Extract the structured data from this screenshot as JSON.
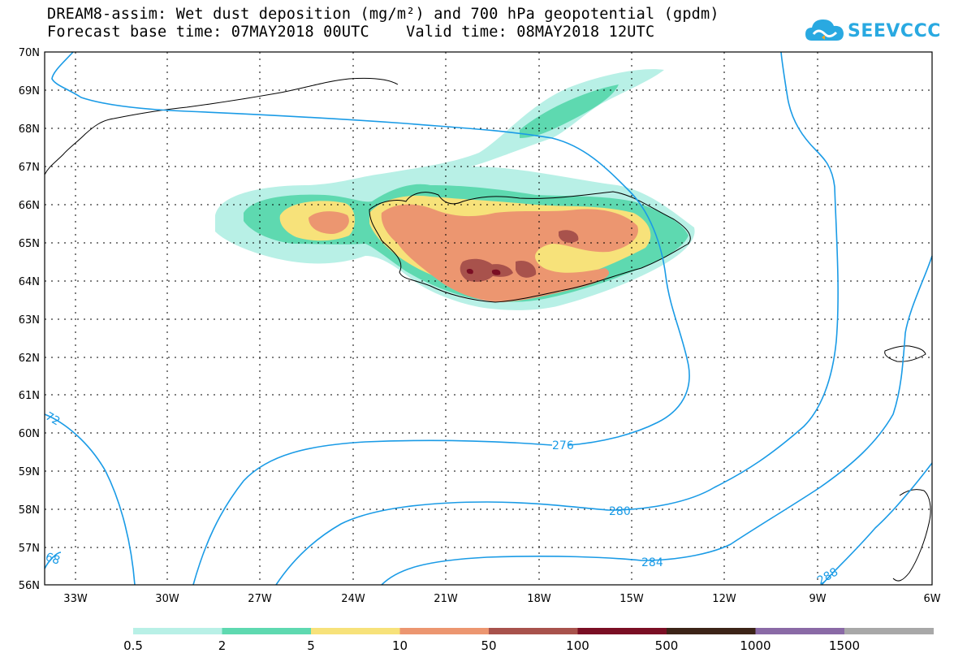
{
  "title_line1": "DREAM8-assim: Wet dust deposition (mg/m²) and 700 hPa geopotential (gpdm)",
  "title_line2": "Forecast base time: 07MAY2018 00UTC    Valid time: 08MAY2018 12UTC",
  "logo_text": "SEEVCCC",
  "map": {
    "lon_range": [
      -34.5,
      -6
    ],
    "lat_range": [
      56,
      70
    ],
    "lat_labels": [
      "70N",
      "69N",
      "68N",
      "67N",
      "66N",
      "65N",
      "64N",
      "63N",
      "62N",
      "61N",
      "60N",
      "59N",
      "58N",
      "57N",
      "56N"
    ],
    "lon_labels": [
      "33W",
      "30W",
      "27W",
      "24W",
      "21W",
      "18W",
      "15W",
      "12W",
      "9W",
      "6W"
    ],
    "grid": true
  },
  "contours": {
    "color": "#1a9be6",
    "labels": [
      "72",
      "68",
      "276",
      "280",
      "284",
      "288"
    ]
  },
  "legend": {
    "colors": [
      "#b8f0e6",
      "#5ed9b0",
      "#f7e27a",
      "#ec9670",
      "#a8524c",
      "#7a0e24",
      "#3c2418",
      "#8a6aa6",
      "#a8a8a8"
    ],
    "labels": [
      "0.5",
      "2",
      "5",
      "10",
      "50",
      "100",
      "500",
      "1000",
      "1500"
    ]
  }
}
